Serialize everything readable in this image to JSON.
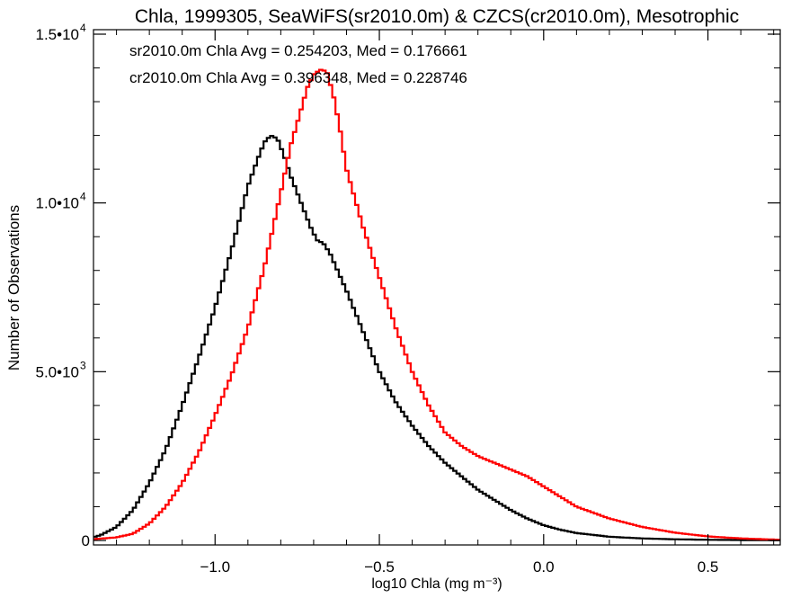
{
  "colors": {
    "series_black": "#000000",
    "series_red": "#ff0000",
    "axis": "#000000",
    "background": "#ffffff"
  },
  "chart_data": {
    "type": "line",
    "title": "Chla, 1999305, SeaWiFS(sr2010.0m) & CZCS(cr2010.0m), Mesotrophic",
    "xlabel": "log10 Chla (mg m⁻³)",
    "ylabel": "Number of Observations",
    "xlim": [
      -1.37,
      0.72
    ],
    "ylim": [
      0,
      15000
    ],
    "grid": false,
    "x_ticks": [
      {
        "value": -1.0,
        "label": "−1.0"
      },
      {
        "value": -0.5,
        "label": "−0.5"
      },
      {
        "value": 0.0,
        "label": "0.0"
      },
      {
        "value": 0.5,
        "label": "0.5"
      }
    ],
    "y_ticks": [
      {
        "value": 0,
        "label": "0"
      },
      {
        "value": 5000,
        "label": "5.0•10",
        "exp": "3"
      },
      {
        "value": 10000,
        "label": "1.0•10",
        "exp": "4"
      },
      {
        "value": 15000,
        "label": "1.5•10",
        "exp": "4"
      }
    ],
    "annotations": [
      {
        "text": "sr2010.0m Chla Avg = 0.254203, Med = 0.176661",
        "color": "#000000"
      },
      {
        "text": "cr2010.0m Chla Avg = 0.396348, Med = 0.228746",
        "color": "#ff0000"
      }
    ],
    "series": [
      {
        "color": "#000000",
        "x": [
          -1.37,
          -1.35,
          -1.3,
          -1.25,
          -1.2,
          -1.15,
          -1.1,
          -1.05,
          -1.0,
          -0.95,
          -0.9,
          -0.87,
          -0.85,
          -0.83,
          -0.81,
          -0.79,
          -0.77,
          -0.75,
          -0.73,
          -0.71,
          -0.69,
          -0.67,
          -0.65,
          -0.6,
          -0.55,
          -0.5,
          -0.45,
          -0.4,
          -0.35,
          -0.3,
          -0.25,
          -0.2,
          -0.15,
          -0.1,
          -0.05,
          0.0,
          0.05,
          0.1,
          0.2,
          0.3,
          0.4,
          0.5,
          0.6,
          0.72
        ],
        "y": [
          100,
          150,
          400,
          900,
          1700,
          2700,
          4000,
          5400,
          6900,
          8600,
          10500,
          11300,
          11800,
          12000,
          11900,
          11400,
          10800,
          10300,
          9800,
          9300,
          8900,
          8800,
          8500,
          7400,
          6200,
          5000,
          4100,
          3400,
          2800,
          2300,
          1900,
          1500,
          1200,
          900,
          650,
          450,
          320,
          220,
          110,
          60,
          35,
          20,
          12,
          5
        ]
      },
      {
        "color": "#ff0000",
        "x": [
          -1.37,
          -1.3,
          -1.25,
          -1.2,
          -1.15,
          -1.1,
          -1.05,
          -1.0,
          -0.95,
          -0.9,
          -0.85,
          -0.8,
          -0.77,
          -0.74,
          -0.72,
          -0.7,
          -0.68,
          -0.66,
          -0.64,
          -0.62,
          -0.6,
          -0.55,
          -0.5,
          -0.45,
          -0.4,
          -0.35,
          -0.3,
          -0.25,
          -0.2,
          -0.15,
          -0.1,
          -0.05,
          0.0,
          0.05,
          0.1,
          0.2,
          0.3,
          0.4,
          0.5,
          0.6,
          0.72
        ],
        "y": [
          40,
          90,
          200,
          500,
          1000,
          1700,
          2600,
          3700,
          4900,
          6300,
          8100,
          10300,
          11700,
          12700,
          13400,
          13800,
          13950,
          13900,
          13200,
          12200,
          11000,
          9300,
          7800,
          6300,
          5000,
          4000,
          3200,
          2800,
          2500,
          2300,
          2100,
          1900,
          1600,
          1300,
          1000,
          650,
          400,
          230,
          120,
          60,
          20
        ]
      }
    ]
  }
}
